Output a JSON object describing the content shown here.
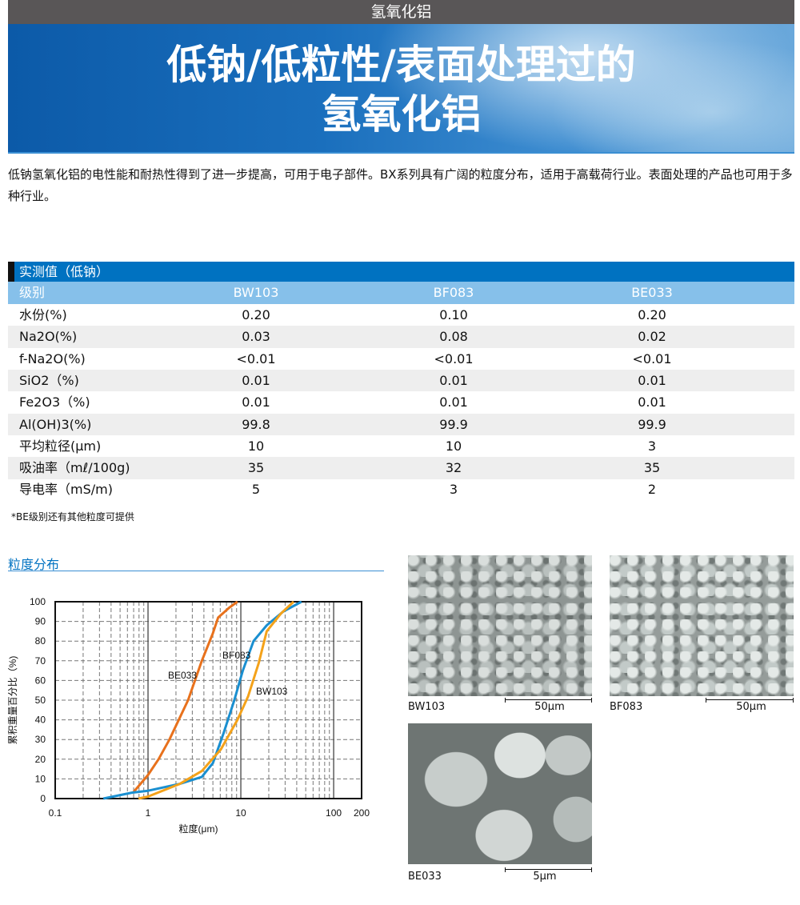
{
  "header": {
    "category": "氢氧化铝",
    "title_line1": "低钠/低粒性/表面处理过的",
    "title_line2": "氢氧化铝"
  },
  "intro": "低钠氢氧化铝的电性能和耐热性得到了进一步提高，可用于电子部件。BX系列具有广阔的粒度分布，适用于高载荷行业。表面处理的产品也可用于多种行业。",
  "table": {
    "title": "实测值（低钠）",
    "columns": [
      "级别",
      "BW103",
      "BF083",
      "BE033"
    ],
    "rows": [
      {
        "label": "水份(%)",
        "values": [
          "0.20",
          "0.10",
          "0.20"
        ]
      },
      {
        "label": "Na2O(%)",
        "values": [
          "0.03",
          "0.08",
          "0.02"
        ]
      },
      {
        "label": "f-Na2O(%)",
        "values": [
          "<0.01",
          "<0.01",
          "<0.01"
        ]
      },
      {
        "label": "SiO2（%)",
        "values": [
          "0.01",
          "0.01",
          "0.01"
        ]
      },
      {
        "label": "Fe2O3（%)",
        "values": [
          "0.01",
          "0.01",
          "0.01"
        ]
      },
      {
        "label": "Al(OH)3(%)",
        "values": [
          "99.8",
          "99.9",
          "99.9"
        ]
      },
      {
        "label": "平均粒径(μm)",
        "values": [
          "10",
          "10",
          "3"
        ]
      },
      {
        "label": "吸油率（mℓ/100g)",
        "values": [
          "35",
          "32",
          "35"
        ]
      },
      {
        "label": "导电率（mS/m)",
        "values": [
          "5",
          "3",
          "2"
        ]
      }
    ],
    "footnote": "*BE级别还有其他粒度可提供"
  },
  "section_title": "粒度分布",
  "chart_data": {
    "type": "line",
    "xlabel": "粒度(μm)",
    "ylabel": "累积重量百分比（%)",
    "xscale": "log",
    "xlim": [
      0.1,
      200
    ],
    "ylim": [
      0,
      100
    ],
    "xticks": [
      "0.1",
      "1",
      "10",
      "100",
      "200"
    ],
    "yticks": [
      "0",
      "10",
      "20",
      "30",
      "40",
      "50",
      "60",
      "70",
      "80",
      "90",
      "100"
    ],
    "grid": true,
    "series": [
      {
        "name": "BE033",
        "color": "#e8711c",
        "points": [
          [
            0.69,
            3
          ],
          [
            1,
            12
          ],
          [
            1.3,
            20
          ],
          [
            1.7,
            30
          ],
          [
            2.7,
            50
          ],
          [
            3.8,
            70
          ],
          [
            5,
            84
          ],
          [
            5.7,
            92
          ],
          [
            7.5,
            97
          ],
          [
            9.2,
            100
          ]
        ]
      },
      {
        "name": "BF083",
        "color": "#1a8fd0",
        "points": [
          [
            0.33,
            0
          ],
          [
            0.67,
            3
          ],
          [
            1,
            4
          ],
          [
            2.2,
            7.5
          ],
          [
            3.8,
            11
          ],
          [
            5,
            18
          ],
          [
            6.5,
            33
          ],
          [
            8.5,
            50
          ],
          [
            10.5,
            65
          ],
          [
            13.7,
            80
          ],
          [
            19,
            88
          ],
          [
            28.6,
            95
          ],
          [
            45,
            100
          ]
        ]
      },
      {
        "name": "BW103",
        "color": "#f4a21a",
        "points": [
          [
            0.79,
            0
          ],
          [
            1,
            1
          ],
          [
            2.2,
            7.5
          ],
          [
            3.8,
            14
          ],
          [
            6.1,
            25
          ],
          [
            9.2,
            40
          ],
          [
            12,
            52
          ],
          [
            15.6,
            69
          ],
          [
            19,
            85
          ],
          [
            27,
            94
          ],
          [
            37,
            100
          ]
        ]
      }
    ]
  },
  "photos": [
    {
      "label": "BW103",
      "scale": "50μm"
    },
    {
      "label": "BF083",
      "scale": "50μm"
    },
    {
      "label": "BE033",
      "scale": "5μm"
    }
  ]
}
